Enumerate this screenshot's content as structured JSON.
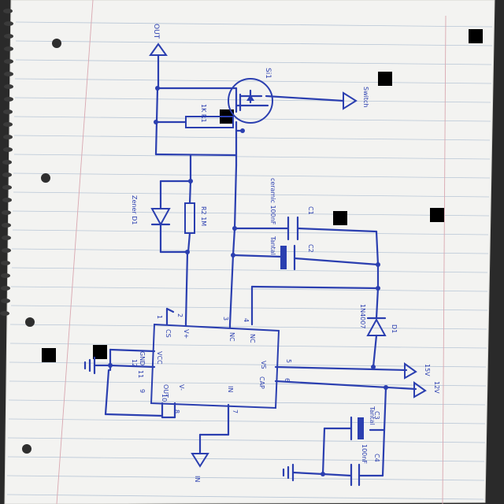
{
  "colors": {
    "ink": "#2b3fb0",
    "paper": "#f3f3f1",
    "rule_line": "#b8c6d6",
    "margin_line": "#d9a7b0",
    "background": "#2a2a2a",
    "redaction": "#000000"
  },
  "labels": {
    "out": "OUT",
    "switch": "Switch",
    "r1": "1K R1",
    "ic_sil": "Si1",
    "d1_left": "Zener D1",
    "r2": "R2 1M",
    "cap_ceramic": "ceramic 100nF",
    "c_top": "C1",
    "cap_tantal": "Tantal",
    "c_mid": "C2",
    "diode_val": "1N4007",
    "d_right": "D1",
    "pin_cs": "CS",
    "pin_v_plus": "V+",
    "pin_nc1": "NC",
    "pin_nc2": "NC",
    "pin_gnd": "GND",
    "pin_vcc": "VCC",
    "pin_vs": "VS",
    "pin_cap": "CAP",
    "pin_out": "OUT",
    "pin_in": "IN",
    "pin_v_minus": "V-",
    "pin_n1": "1",
    "pin_n2": "2",
    "pin_n3": "3",
    "pin_n4": "4",
    "pin_n5": "5",
    "pin_n6": "6",
    "pin_n7": "7",
    "pin_n8": "8",
    "pin_n9": "9",
    "pin_n10": "10",
    "pin_n11": "11",
    "pin_n12": "12",
    "v15": "15V",
    "v12": "12V",
    "tantal_bottom": "Tantal",
    "c3": "C3",
    "c4": "C4",
    "cap_bottom_val": "100nF",
    "in": "IN"
  }
}
